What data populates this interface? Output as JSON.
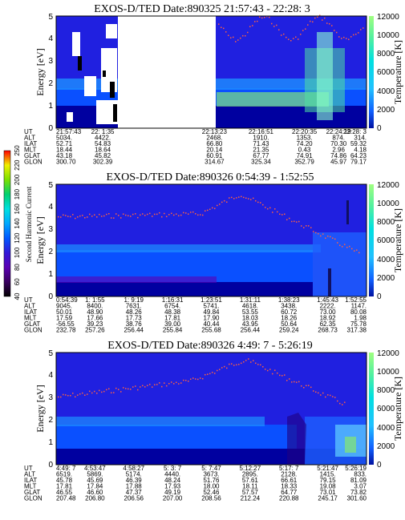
{
  "chart_data": [
    {
      "type": "heatmap",
      "title": "EXOS-D/TED  Date:890325  21:57:43 - 22:28: 3",
      "ylabel": "Energy [eV]",
      "ylabel_right": "Temperature [K]",
      "ylim": [
        0,
        5
      ],
      "ylim_right": [
        0,
        12000
      ],
      "yticks": [
        "0",
        "1",
        "2",
        "3",
        "4",
        "5"
      ],
      "yticks_right": [
        "0",
        "2000",
        "4000",
        "6000",
        "8000",
        "10000",
        "12000"
      ],
      "data_gap": [
        0.2,
        0.51
      ],
      "table": {
        "row_labels": [
          "UT",
          "ALT",
          "ILAT",
          "MLT",
          "GLAT",
          "GLON"
        ],
        "columns": [
          {
            "x": 0.0,
            "values": [
              "21:57:43",
              "5034.",
              "52.71",
              "18.44",
              "43.18",
              "300.70"
            ]
          },
          {
            "x": 0.15,
            "values": [
              "22: 1:35",
              "4422.",
              "54.83",
              "18.64",
              "45.82",
              "302.39"
            ]
          },
          {
            "x": 0.51,
            "values": [
              "22:13:23",
              "2468.",
              "66.80",
              "20.14",
              "60.91",
              "314.67"
            ]
          },
          {
            "x": 0.66,
            "values": [
              "22:16:51",
              "1910.",
              "71.43",
              "21.35",
              "67.77",
              "325.34"
            ]
          },
          {
            "x": 0.8,
            "values": [
              "22:20:35",
              "1353.",
              "74.20",
              "0.43",
              "74.91",
              "352.79"
            ]
          },
          {
            "x": 0.91,
            "values": [
              "22:24:19",
              "874.",
              "70.30",
              "2.96",
              "74.86",
              "45.97"
            ]
          },
          {
            "x": 1.0,
            "values": [
              "22:28: 3",
              "314.",
              "59.32",
              "4.18",
              "64.23",
              "79.17"
            ]
          }
        ]
      }
    },
    {
      "type": "heatmap",
      "title": "EXOS-D/TED   Date:890326  0:54:39 - 1:52:55",
      "ylabel": "Energy [eV]",
      "ylabel_right": "Temperature [K]",
      "ylim": [
        0,
        5
      ],
      "ylim_right": [
        0,
        12000
      ],
      "yticks": [
        "0",
        "1",
        "2",
        "3",
        "4",
        "5"
      ],
      "yticks_right": [
        "0",
        "2000",
        "4000",
        "6000",
        "8000",
        "10000",
        "12000"
      ],
      "table": {
        "row_labels": [
          "UT",
          "ALT",
          "ILAT",
          "MLT",
          "GLAT",
          "GLON"
        ],
        "columns": [
          {
            "x": 0.0,
            "values": [
              "0:54:39",
              "9045.",
              "50.01",
              "17.59",
              "-56.55",
              "232.78"
            ]
          },
          {
            "x": 0.125,
            "values": [
              "1: 1:55",
              "8400.",
              "48.90",
              "17.66",
              "39.23",
              "257.26"
            ]
          },
          {
            "x": 0.25,
            "values": [
              "1: 9:19",
              "7631.",
              "48.26",
              "17.73",
              "38.76",
              "256.44"
            ]
          },
          {
            "x": 0.375,
            "values": [
              "1:16:31",
              "6754.",
              "48.38",
              "17.81",
              "39.00",
              "255.84"
            ]
          },
          {
            "x": 0.5,
            "values": [
              "1:23:51",
              "5741.",
              "49.84",
              "17.90",
              "40.44",
              "255.68"
            ]
          },
          {
            "x": 0.625,
            "values": [
              "1:31:11",
              "4618.",
              "53.55",
              "18.03",
              "43.95",
              "256.44"
            ]
          },
          {
            "x": 0.75,
            "values": [
              "1:38:23",
              "3438.",
              "60.72",
              "18.26",
              "50.64",
              "259.24"
            ]
          },
          {
            "x": 0.875,
            "values": [
              "1:45:43",
              "2222.",
              "73.00",
              "18.92",
              "62.35",
              "268.73"
            ]
          },
          {
            "x": 1.0,
            "values": [
              "1:52:55",
              "1147.",
              "80.08",
              "1.98",
              "75.78",
              "317.38"
            ]
          }
        ]
      }
    },
    {
      "type": "heatmap",
      "title": "EXOS-D/TED   Date:890326  4:49: 7 - 5:26:19",
      "ylabel": "Energy [eV]",
      "ylabel_right": "Temperature [K]",
      "ylim": [
        0,
        5
      ],
      "ylim_right": [
        0,
        12000
      ],
      "yticks": [
        "0",
        "1",
        "2",
        "3",
        "4",
        "5"
      ],
      "yticks_right": [
        "0",
        "2000",
        "4000",
        "6000",
        "8000",
        "10000",
        "12000"
      ],
      "table": {
        "row_labels": [
          "UT",
          "ALT",
          "ILAT",
          "MLT",
          "GLAT",
          "GLON"
        ],
        "columns": [
          {
            "x": 0.0,
            "values": [
              "4:49: 7",
              "6519.",
              "45.78",
              "17.81",
              "46.55",
              "207.48"
            ]
          },
          {
            "x": 0.125,
            "values": [
              "4:53:47",
              "5869.",
              "45.69",
              "17.84",
              "46.60",
              "206.80"
            ]
          },
          {
            "x": 0.25,
            "values": [
              "4:58:27",
              "5174.",
              "46.39",
              "17.88",
              "47.37",
              "206.56"
            ]
          },
          {
            "x": 0.375,
            "values": [
              "5: 3: 7",
              "4440.",
              "48.24",
              "17.93",
              "49.19",
              "207.00"
            ]
          },
          {
            "x": 0.5,
            "values": [
              "5: 7:47",
              "3673.",
              "51.76",
              "18.00",
              "52.46",
              "208.56"
            ]
          },
          {
            "x": 0.625,
            "values": [
              "5:12:27",
              "2895.",
              "57.61",
              "18.11",
              "57.57",
              "212.24"
            ]
          },
          {
            "x": 0.75,
            "values": [
              "5:17: 7",
              "2128.",
              "66.61",
              "18.33",
              "64.77",
              "220.88"
            ]
          },
          {
            "x": 0.875,
            "values": [
              "5:21:47",
              "1415.",
              "79.15",
              "19.08",
              "73.01",
              "245.17"
            ]
          },
          {
            "x": 1.0,
            "values": [
              "5:26:19",
              "833.",
              "81.09",
              "3.07",
              "73.82",
              "301.60"
            ]
          }
        ]
      }
    }
  ],
  "colorbar": {
    "label": "Second Harmonic Current",
    "ticks": [
      "40",
      "60",
      "80",
      "100",
      "120",
      "140",
      "160",
      "180",
      "200",
      "220",
      "250"
    ],
    "colors": [
      "#000000",
      "#3a0060",
      "#5a00b4",
      "#3218d8",
      "#0058ff",
      "#00a8ff",
      "#00e0e0",
      "#00d070",
      "#7ae000",
      "#f0f000",
      "#ff0000"
    ]
  },
  "colors": {
    "background": "#2020e0",
    "band_low": "#0000a0",
    "band_mid": "#0a50ff",
    "band_high": "#1e90ff",
    "green": "#7ee080",
    "temperature_dots": "#ff6040"
  }
}
